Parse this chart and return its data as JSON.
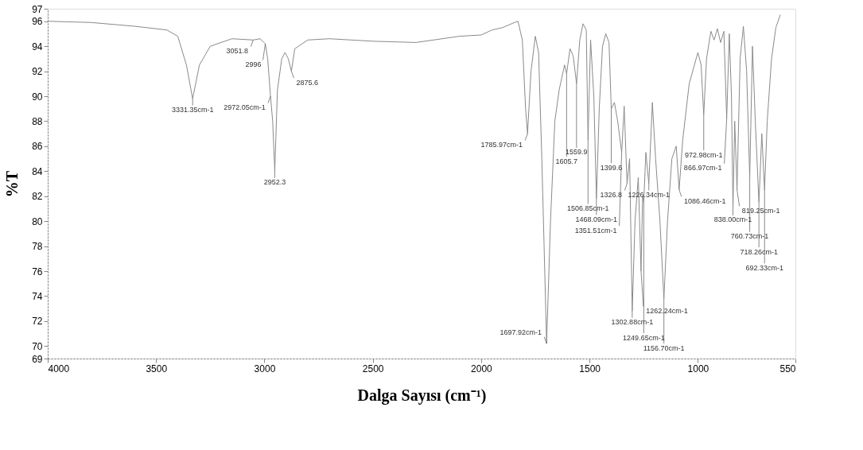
{
  "chart_data": {
    "type": "line",
    "xlabel": "Dalga Sayısı (cm⁻¹)",
    "ylabel": "%T",
    "x": [
      4000,
      3800,
      3600,
      3450,
      3400,
      3360,
      3331.35,
      3300,
      3250,
      3150,
      3051.8,
      3020,
      2996,
      2985,
      2972.05,
      2962,
      2952.3,
      2940,
      2920,
      2905,
      2890,
      2875.6,
      2860,
      2800,
      2700,
      2500,
      2300,
      2100,
      2000,
      1950,
      1900,
      1860,
      1830,
      1810,
      1795,
      1785.97,
      1770,
      1750,
      1735,
      1720,
      1697.92,
      1680,
      1660,
      1640,
      1615,
      1605.7,
      1590,
      1575,
      1559.9,
      1545,
      1530,
      1515,
      1506.85,
      1495,
      1480,
      1468.09,
      1455,
      1440,
      1425,
      1410,
      1399.6,
      1385,
      1370,
      1351.51,
      1340,
      1326.8,
      1315,
      1302.88,
      1290,
      1275,
      1262.24,
      1255,
      1249.65,
      1240,
      1226.34,
      1210,
      1195,
      1175,
      1156.7,
      1140,
      1120,
      1100,
      1086.46,
      1070,
      1040,
      1000,
      985,
      972.98,
      960,
      940,
      925,
      910,
      895,
      880,
      866.97,
      855,
      845,
      838,
      830,
      819.25,
      805,
      790,
      775,
      760.73,
      748,
      735,
      718.26,
      705,
      692.33,
      680,
      660,
      640,
      620
    ],
    "series": [
      {
        "color": "#8a8a8a",
        "values": [
          96.0,
          95.9,
          95.6,
          95.3,
          94.8,
          92.5,
          89.8,
          92.5,
          94.0,
          94.6,
          94.5,
          94.6,
          94.2,
          93.0,
          90.0,
          88.0,
          84.0,
          90.5,
          93.0,
          93.5,
          93.0,
          92.0,
          93.8,
          94.5,
          94.6,
          94.4,
          94.3,
          94.8,
          94.9,
          95.3,
          95.5,
          95.8,
          96.0,
          94.5,
          89.0,
          87.0,
          92.0,
          94.8,
          93.5,
          85.0,
          70.2,
          80.0,
          88.0,
          90.5,
          92.5,
          91.8,
          93.8,
          93.2,
          91.0,
          94.5,
          95.8,
          95.3,
          86.5,
          94.5,
          90.0,
          81.8,
          89.0,
          94.0,
          95.0,
          94.3,
          89.0,
          89.5,
          88.0,
          85.5,
          89.2,
          83.0,
          85.0,
          72.8,
          80.0,
          83.5,
          76.0,
          82.0,
          81.5,
          85.5,
          83.0,
          89.5,
          85.0,
          80.0,
          73.8,
          80.0,
          85.0,
          86.0,
          82.5,
          86.5,
          91.0,
          93.5,
          92.5,
          88.5,
          93.0,
          95.2,
          94.5,
          95.4,
          94.3,
          95.2,
          88.2,
          95.0,
          90.0,
          81.0,
          88.0,
          82.5,
          93.0,
          95.6,
          92.0,
          83.5,
          94.0,
          88.0,
          81.5,
          87.0,
          82.5,
          88.0,
          93.0,
          95.5,
          96.5
        ]
      }
    ],
    "xlim": [
      4000,
      550
    ],
    "xticks": [
      4000,
      3500,
      3000,
      2500,
      2000,
      1500,
      1000,
      550
    ],
    "ylim": [
      69,
      97
    ],
    "yticks": [
      69,
      70,
      72,
      74,
      76,
      78,
      80,
      82,
      84,
      86,
      88,
      90,
      92,
      94,
      96,
      97
    ],
    "annotations": [
      {
        "text": "3331.35cm-1",
        "x": 3331.35,
        "y": 89.8
      },
      {
        "text": "3051.8",
        "x": 3051.8,
        "y": 94.5
      },
      {
        "text": "2996",
        "x": 2996,
        "y": 94.2
      },
      {
        "text": "2972.05cm-1",
        "x": 2972.05,
        "y": 90.0
      },
      {
        "text": "2952.3",
        "x": 2952.3,
        "y": 84.0
      },
      {
        "text": "2875.6",
        "x": 2875.6,
        "y": 92.0
      },
      {
        "text": "1785.97cm-1",
        "x": 1785.97,
        "y": 87.0
      },
      {
        "text": "1697.92cm-1",
        "x": 1697.92,
        "y": 70.2
      },
      {
        "text": "1605.7",
        "x": 1605.7,
        "y": 91.8
      },
      {
        "text": "1559.9",
        "x": 1559.9,
        "y": 91.0
      },
      {
        "text": "1506.85cm-1",
        "x": 1506.85,
        "y": 86.5
      },
      {
        "text": "1468.09cm-1",
        "x": 1468.09,
        "y": 81.8
      },
      {
        "text": "1399.6",
        "x": 1399.6,
        "y": 89.0
      },
      {
        "text": "1351.51cm-1",
        "x": 1351.51,
        "y": 85.5
      },
      {
        "text": "1326.8",
        "x": 1326.8,
        "y": 83.0
      },
      {
        "text": "1302.88cm-1",
        "x": 1302.88,
        "y": 72.8
      },
      {
        "text": "1262.24cm-1",
        "x": 1262.24,
        "y": 76.0
      },
      {
        "text": "1249.65cm-1",
        "x": 1249.65,
        "y": 81.5
      },
      {
        "text": "1226.34cm-1",
        "x": 1226.34,
        "y": 83.0
      },
      {
        "text": "1156.70cm-1",
        "x": 1156.7,
        "y": 73.8
      },
      {
        "text": "1086.46cm-1",
        "x": 1086.46,
        "y": 82.5
      },
      {
        "text": "972.98cm-1",
        "x": 972.98,
        "y": 88.5
      },
      {
        "text": "866.97cm-1",
        "x": 866.97,
        "y": 88.2
      },
      {
        "text": "838.00cm-1",
        "x": 838.0,
        "y": 81.0
      },
      {
        "text": "819.25cm-1",
        "x": 819.25,
        "y": 82.5
      },
      {
        "text": "760.73cm-1",
        "x": 760.73,
        "y": 83.5
      },
      {
        "text": "718.26cm-1",
        "x": 718.26,
        "y": 81.5
      },
      {
        "text": "692.33cm-1",
        "x": 692.33,
        "y": 82.5
      }
    ]
  }
}
